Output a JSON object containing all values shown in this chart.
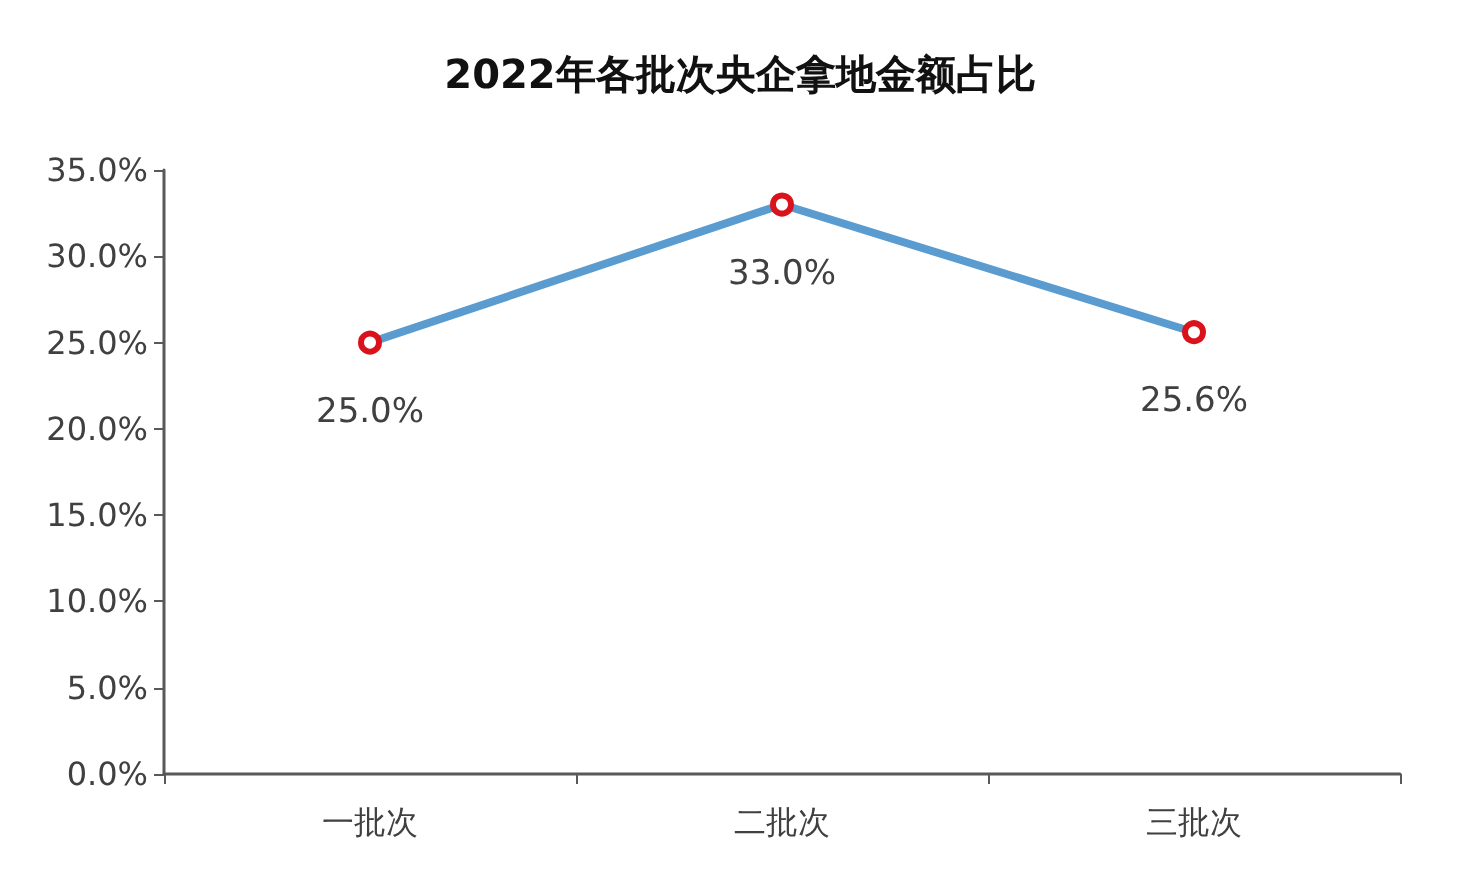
{
  "chart_data": {
    "type": "line",
    "title": "2022年各批次央企拿地金额占比",
    "categories": [
      "一批次",
      "二批次",
      "三批次"
    ],
    "series": [
      {
        "color": "#5a9bd0",
        "values": [
          25.0,
          33.0,
          25.6
        ]
      }
    ],
    "colors": [
      "#d9121b",
      "#d9121b",
      "#d9121b"
    ],
    "value_labels": [
      "25.0%",
      "33.0%",
      "25.6%"
    ],
    "marker": "circle",
    "ylim": [
      0,
      35
    ],
    "yticks": [
      {
        "value": 0,
        "label": "0.0%"
      },
      {
        "value": 5,
        "label": "5.0%"
      },
      {
        "value": 10,
        "label": "10.0%"
      },
      {
        "value": 15,
        "label": "15.0%"
      },
      {
        "value": 20,
        "label": "20.0%"
      },
      {
        "value": 25,
        "label": "25.0%"
      },
      {
        "value": 30,
        "label": "30.0%"
      },
      {
        "value": 35,
        "label": "35.0%"
      }
    ],
    "grid": false
  }
}
